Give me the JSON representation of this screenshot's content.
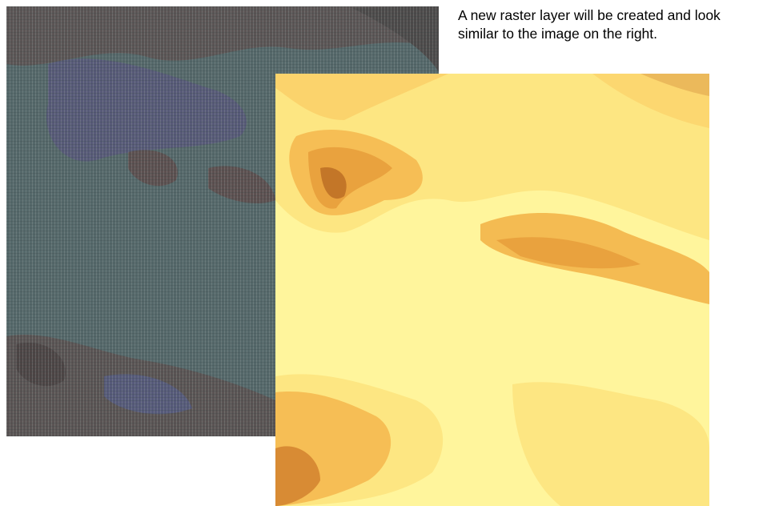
{
  "caption": "A new raster layer will be created and look similar to the image on the right."
}
